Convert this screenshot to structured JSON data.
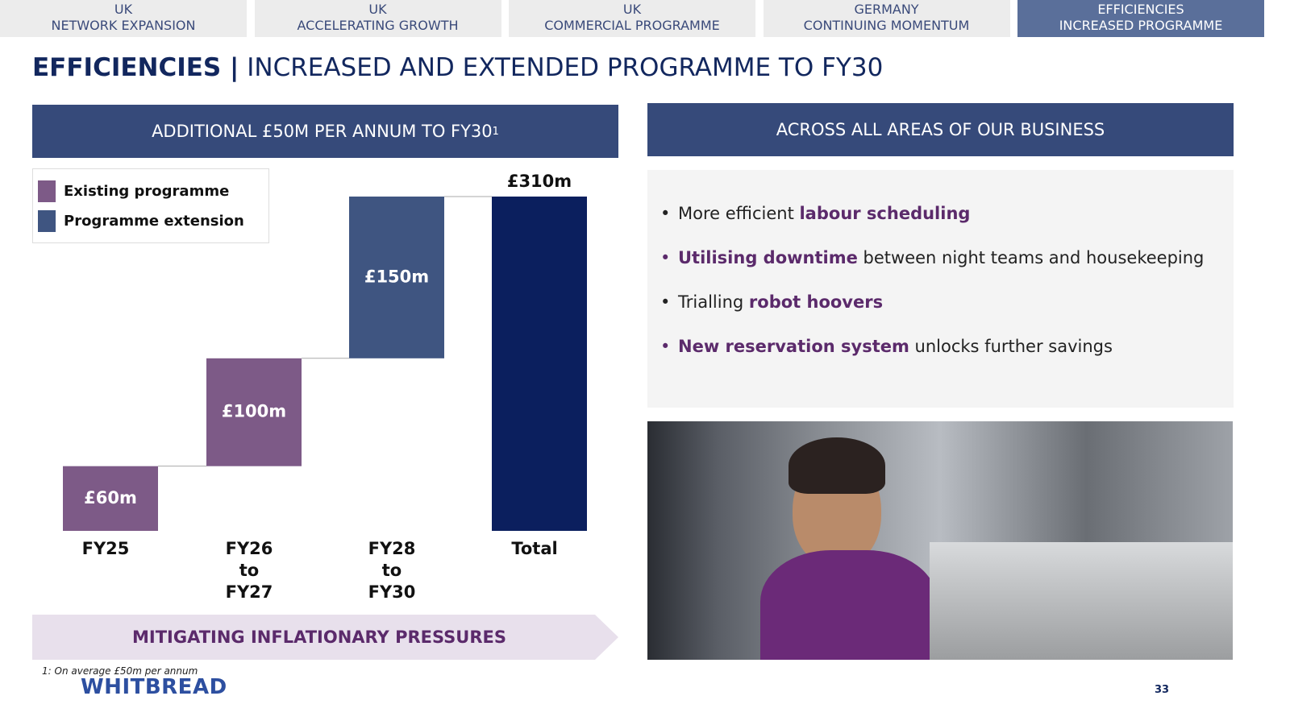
{
  "nav": [
    {
      "top": "UK",
      "bottom": "NETWORK EXPANSION"
    },
    {
      "top": "UK",
      "bottom": "ACCELERATING GROWTH"
    },
    {
      "top": "UK",
      "bottom": "COMMERCIAL PROGRAMME"
    },
    {
      "top": "GERMANY",
      "bottom": "CONTINUING MOMENTUM"
    },
    {
      "top": "EFFICIENCIES",
      "bottom": "INCREASED PROGRAMME",
      "active": true
    }
  ],
  "title": {
    "bold": "EFFICIENCIES |",
    "rest": "INCREASED AND EXTENDED PROGRAMME TO FY30"
  },
  "chart_data": {
    "type": "waterfall",
    "title": "ADDITIONAL £50M PER ANNUM TO FY30",
    "title_note": "1",
    "categories": [
      "FY25",
      "FY26 to FY27",
      "FY28 to FY30",
      "Total"
    ],
    "series": [
      {
        "name": "Existing programme",
        "color": "#7d5a87",
        "values": [
          60,
          100,
          null,
          null
        ],
        "value_labels": [
          "£60m",
          "£100m",
          null,
          null
        ]
      },
      {
        "name": "Programme extension",
        "color": "#3f5581",
        "values": [
          null,
          null,
          150,
          null
        ],
        "value_labels": [
          null,
          null,
          "£150m",
          null
        ]
      }
    ],
    "total": {
      "value": 310,
      "value_label": "£310m",
      "color": "#0b1f5e"
    },
    "legend": "upper left"
  },
  "banner": "MITIGATING INFLATIONARY PRESSURES",
  "right_header": "ACROSS ALL AREAS OF OUR BUSINESS",
  "bullets": [
    [
      {
        "text": "More efficient "
      },
      {
        "text": "labour scheduling",
        "highlight": true
      }
    ],
    [
      {
        "text": "Utilising downtime",
        "highlight": true
      },
      {
        "text": " between night teams and housekeeping"
      }
    ],
    [
      {
        "text": "Trialling "
      },
      {
        "text": "robot hoovers",
        "highlight": true
      }
    ],
    [
      {
        "text": "New reservation system",
        "highlight": true
      },
      {
        "text": " unlocks further savings"
      }
    ]
  ],
  "footnote": "1: On average £50m per annum",
  "logo": "WHITBREAD",
  "page_number": "33"
}
